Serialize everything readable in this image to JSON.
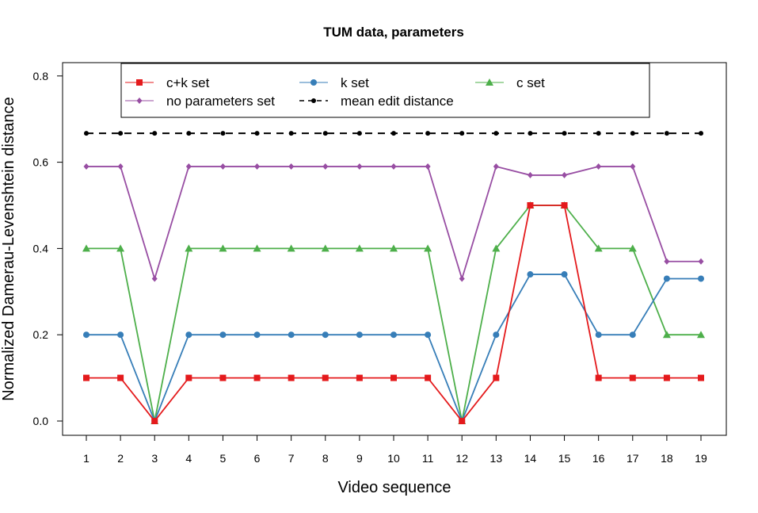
{
  "chart_data": {
    "type": "line",
    "title": "TUM data, parameters",
    "xlabel": "Video sequence",
    "ylabel": "Normalized Damerau-Levenshtein distance",
    "x": [
      1,
      2,
      3,
      4,
      5,
      6,
      7,
      8,
      9,
      10,
      11,
      12,
      13,
      14,
      15,
      16,
      17,
      18,
      19
    ],
    "x_ticks": [
      "1",
      "2",
      "3",
      "4",
      "5",
      "6",
      "7",
      "8",
      "9",
      "10",
      "11",
      "12",
      "13",
      "14",
      "15",
      "16",
      "17",
      "18",
      "19"
    ],
    "y_ticks": [
      "0.0",
      "0.2",
      "0.4",
      "0.6",
      "0.8"
    ],
    "ylim": [
      0,
      0.8
    ],
    "grid": false,
    "legend_position": "top",
    "series": [
      {
        "name": "c+k set",
        "color": "#e41a1c",
        "marker": "square",
        "dash": false,
        "values": [
          0.1,
          0.1,
          0.0,
          0.1,
          0.1,
          0.1,
          0.1,
          0.1,
          0.1,
          0.1,
          0.1,
          0.0,
          0.1,
          0.5,
          0.5,
          0.1,
          0.1,
          0.1,
          0.1
        ]
      },
      {
        "name": "k set",
        "color": "#377eb8",
        "marker": "circle",
        "dash": false,
        "values": [
          0.2,
          0.2,
          0.0,
          0.2,
          0.2,
          0.2,
          0.2,
          0.2,
          0.2,
          0.2,
          0.2,
          0.0,
          0.2,
          0.34,
          0.34,
          0.2,
          0.2,
          0.33,
          0.33
        ]
      },
      {
        "name": "c set",
        "color": "#4daf4a",
        "marker": "triangle",
        "dash": false,
        "values": [
          0.4,
          0.4,
          0.0,
          0.4,
          0.4,
          0.4,
          0.4,
          0.4,
          0.4,
          0.4,
          0.4,
          0.0,
          0.4,
          0.5,
          0.5,
          0.4,
          0.4,
          0.2,
          0.2
        ]
      },
      {
        "name": "no parameters set",
        "color": "#984ea3",
        "marker": "diamond",
        "dash": false,
        "values": [
          0.59,
          0.59,
          0.33,
          0.59,
          0.59,
          0.59,
          0.59,
          0.59,
          0.59,
          0.59,
          0.59,
          0.33,
          0.59,
          0.57,
          0.57,
          0.59,
          0.59,
          0.37,
          0.37
        ]
      },
      {
        "name": "mean edit distance",
        "color": "#000000",
        "marker": "dot",
        "dash": true,
        "values": [
          0.667,
          0.667,
          0.667,
          0.667,
          0.667,
          0.667,
          0.667,
          0.667,
          0.667,
          0.667,
          0.667,
          0.667,
          0.667,
          0.667,
          0.667,
          0.667,
          0.667,
          0.667,
          0.667
        ]
      }
    ],
    "legend_order": [
      0,
      1,
      2,
      3,
      4
    ]
  }
}
